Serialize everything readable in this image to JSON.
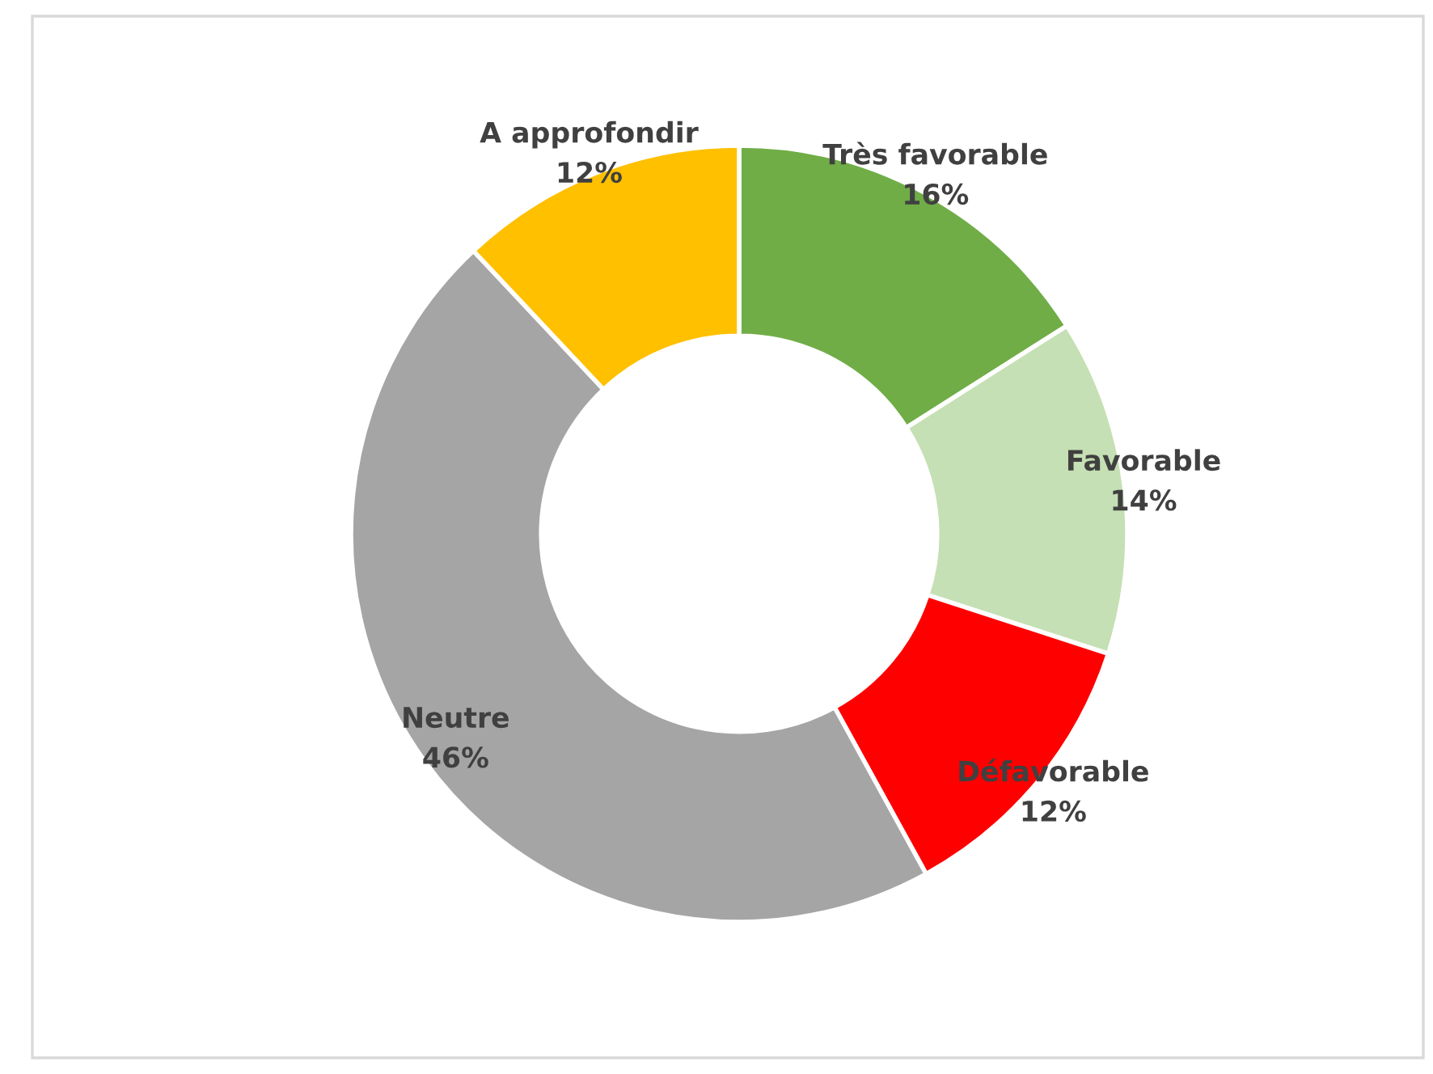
{
  "chart_data": {
    "type": "donut",
    "categories": [
      "Très favorable",
      "Favorable",
      "Défavorable",
      "Neutre",
      "A approfondir"
    ],
    "values": [
      16,
      14,
      12,
      46,
      12
    ],
    "colors": [
      "#70ad47",
      "#c5e0b4",
      "#ff0000",
      "#a5a5a5",
      "#ffc000"
    ],
    "value_labels": [
      "16%",
      "14%",
      "12%",
      "46%",
      "12%"
    ]
  }
}
